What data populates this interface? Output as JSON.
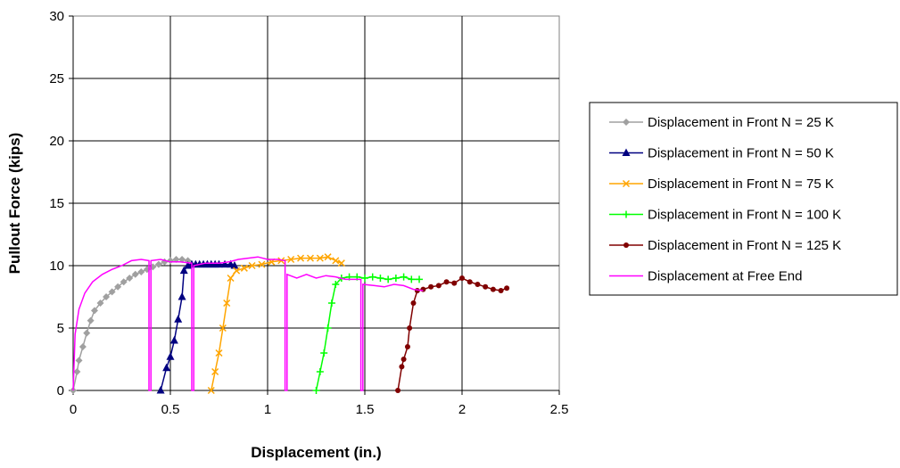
{
  "chart_data": {
    "type": "scatter",
    "xlabel": "Displacement (in.)",
    "ylabel": "Pullout Force (kips)",
    "xlim": [
      0,
      2.5
    ],
    "ylim": [
      0,
      30
    ],
    "xticks": [
      "0",
      "0.5",
      "1",
      "1.5",
      "2",
      "2.5"
    ],
    "yticks": [
      "0",
      "5",
      "10",
      "15",
      "20",
      "25",
      "30"
    ],
    "grid": true,
    "legend_position": "right",
    "series": [
      {
        "name": "Displacement in Front N = 25 K",
        "color": "#a0a0a0",
        "marker": "diamond",
        "points": [
          [
            0,
            0
          ],
          [
            0.02,
            1.5
          ],
          [
            0.03,
            2.4
          ],
          [
            0.05,
            3.5
          ],
          [
            0.07,
            4.6
          ],
          [
            0.09,
            5.6
          ],
          [
            0.11,
            6.4
          ],
          [
            0.14,
            7.0
          ],
          [
            0.17,
            7.5
          ],
          [
            0.2,
            7.9
          ],
          [
            0.23,
            8.3
          ],
          [
            0.26,
            8.7
          ],
          [
            0.29,
            9.0
          ],
          [
            0.32,
            9.3
          ],
          [
            0.35,
            9.5
          ],
          [
            0.38,
            9.7
          ],
          [
            0.41,
            9.9
          ],
          [
            0.44,
            10.1
          ],
          [
            0.47,
            10.3
          ],
          [
            0.5,
            10.4
          ],
          [
            0.53,
            10.5
          ],
          [
            0.56,
            10.5
          ],
          [
            0.59,
            10.4
          ]
        ]
      },
      {
        "name": "Displacement in Front N = 50 K",
        "color": "#000080",
        "marker": "triangle",
        "points": [
          [
            0.45,
            0
          ],
          [
            0.48,
            1.8
          ],
          [
            0.5,
            2.7
          ],
          [
            0.52,
            4.0
          ],
          [
            0.54,
            5.7
          ],
          [
            0.56,
            7.5
          ],
          [
            0.57,
            9.6
          ],
          [
            0.59,
            10.0
          ],
          [
            0.61,
            10.1
          ],
          [
            0.63,
            10.1
          ],
          [
            0.65,
            10.1
          ],
          [
            0.67,
            10.1
          ],
          [
            0.69,
            10.1
          ],
          [
            0.71,
            10.1
          ],
          [
            0.73,
            10.1
          ],
          [
            0.75,
            10.1
          ],
          [
            0.78,
            10.1
          ],
          [
            0.81,
            10.1
          ],
          [
            0.83,
            10.0
          ]
        ]
      },
      {
        "name": "Displacement in Front N = 75 K",
        "color": "#ffa500",
        "marker": "x",
        "points": [
          [
            0.71,
            0
          ],
          [
            0.73,
            1.5
          ],
          [
            0.75,
            3.0
          ],
          [
            0.77,
            5.0
          ],
          [
            0.79,
            7.0
          ],
          [
            0.81,
            9.0
          ],
          [
            0.84,
            9.6
          ],
          [
            0.88,
            9.8
          ],
          [
            0.92,
            10.0
          ],
          [
            0.97,
            10.1
          ],
          [
            1.02,
            10.3
          ],
          [
            1.07,
            10.4
          ],
          [
            1.12,
            10.5
          ],
          [
            1.17,
            10.6
          ],
          [
            1.22,
            10.6
          ],
          [
            1.27,
            10.6
          ],
          [
            1.31,
            10.7
          ],
          [
            1.35,
            10.4
          ],
          [
            1.38,
            10.2
          ]
        ]
      },
      {
        "name": "Displacement in Front N = 100 K",
        "color": "#00ff00",
        "marker": "plus",
        "points": [
          [
            1.25,
            0
          ],
          [
            1.27,
            1.5
          ],
          [
            1.29,
            3.0
          ],
          [
            1.31,
            5.0
          ],
          [
            1.33,
            7.0
          ],
          [
            1.35,
            8.5
          ],
          [
            1.38,
            9.0
          ],
          [
            1.42,
            9.1
          ],
          [
            1.46,
            9.1
          ],
          [
            1.5,
            9.0
          ],
          [
            1.54,
            9.1
          ],
          [
            1.58,
            9.0
          ],
          [
            1.62,
            8.9
          ],
          [
            1.66,
            9.0
          ],
          [
            1.7,
            9.1
          ],
          [
            1.74,
            8.9
          ],
          [
            1.78,
            8.9
          ]
        ]
      },
      {
        "name": "Displacement in Front N = 125 K",
        "color": "#800000",
        "marker": "circle",
        "points": [
          [
            1.67,
            0
          ],
          [
            1.69,
            1.9
          ],
          [
            1.7,
            2.5
          ],
          [
            1.72,
            3.5
          ],
          [
            1.73,
            5.0
          ],
          [
            1.75,
            7.0
          ],
          [
            1.77,
            8.0
          ],
          [
            1.8,
            8.1
          ],
          [
            1.84,
            8.3
          ],
          [
            1.88,
            8.4
          ],
          [
            1.92,
            8.7
          ],
          [
            1.96,
            8.6
          ],
          [
            2.0,
            9.0
          ],
          [
            2.04,
            8.7
          ],
          [
            2.08,
            8.5
          ],
          [
            2.12,
            8.3
          ],
          [
            2.16,
            8.1
          ],
          [
            2.2,
            8.0
          ],
          [
            2.23,
            8.2
          ]
        ]
      },
      {
        "name": "Displacement at Free End",
        "color": "#ff00ff",
        "marker": "none",
        "points": [
          [
            0,
            0
          ],
          [
            0.01,
            4.5
          ],
          [
            0.03,
            6.5
          ],
          [
            0.06,
            7.8
          ],
          [
            0.1,
            8.7
          ],
          [
            0.15,
            9.3
          ],
          [
            0.2,
            9.7
          ],
          [
            0.25,
            10.0
          ],
          [
            0.3,
            10.4
          ],
          [
            0.35,
            10.5
          ],
          [
            0.39,
            10.4
          ],
          [
            0.39,
            0
          ],
          [
            0.4,
            0
          ],
          [
            0.4,
            10.4
          ],
          [
            0.45,
            10.5
          ],
          [
            0.5,
            10.3
          ],
          [
            0.55,
            10.3
          ],
          [
            0.61,
            10.2
          ],
          [
            0.61,
            0
          ],
          [
            0.62,
            0
          ],
          [
            0.62,
            10.0
          ],
          [
            0.68,
            10.2
          ],
          [
            0.75,
            10.2
          ],
          [
            0.8,
            10.3
          ],
          [
            0.85,
            10.5
          ],
          [
            0.9,
            10.6
          ],
          [
            0.95,
            10.7
          ],
          [
            1.0,
            10.5
          ],
          [
            1.05,
            10.5
          ],
          [
            1.09,
            10.4
          ],
          [
            1.09,
            0
          ],
          [
            1.1,
            0
          ],
          [
            1.1,
            9.3
          ],
          [
            1.15,
            9.0
          ],
          [
            1.2,
            9.3
          ],
          [
            1.25,
            9.0
          ],
          [
            1.3,
            9.2
          ],
          [
            1.35,
            9.1
          ],
          [
            1.4,
            8.9
          ],
          [
            1.45,
            8.9
          ],
          [
            1.48,
            8.9
          ],
          [
            1.48,
            0
          ],
          [
            1.49,
            0
          ],
          [
            1.49,
            8.5
          ],
          [
            1.55,
            8.4
          ],
          [
            1.6,
            8.3
          ],
          [
            1.65,
            8.5
          ],
          [
            1.7,
            8.4
          ],
          [
            1.75,
            8.1
          ],
          [
            1.8,
            8.0
          ]
        ]
      }
    ]
  }
}
